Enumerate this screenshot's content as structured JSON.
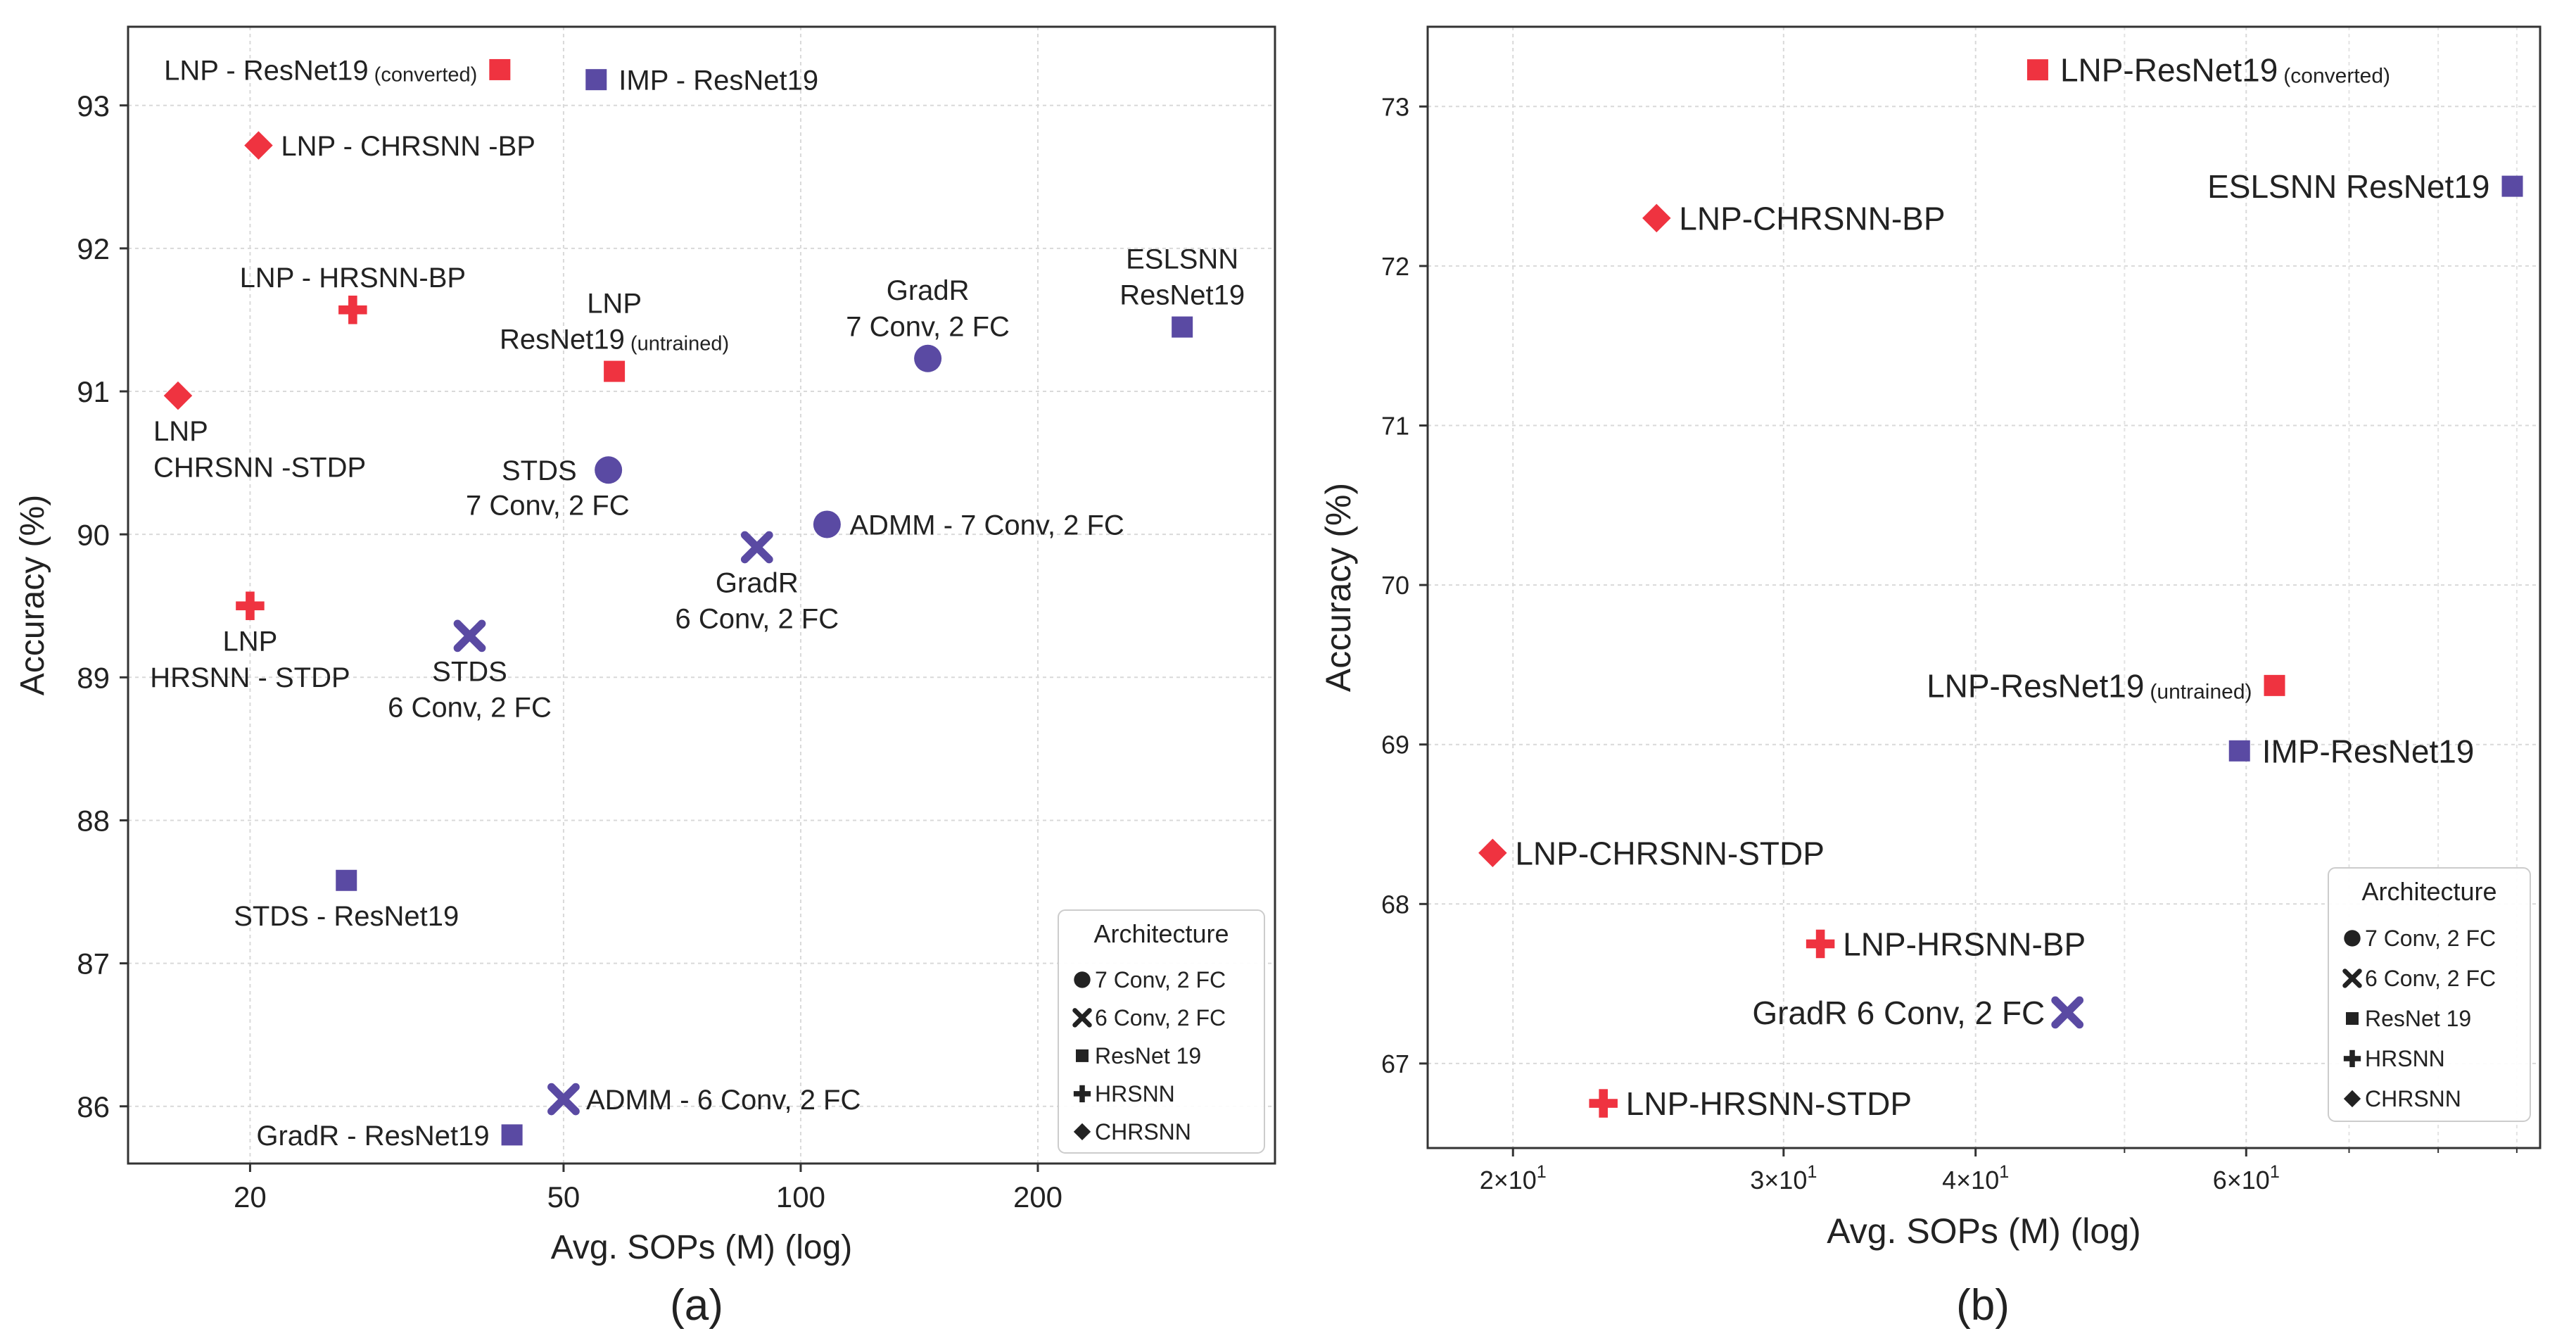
{
  "figure": {
    "panel_labels": [
      "(a)",
      "(b)"
    ]
  },
  "colors": {
    "LNP": "#ef3340",
    "other": "#5a4aa3"
  },
  "chart_data": [
    {
      "type": "scatter",
      "panel": "(a)",
      "xlabel": "Avg. SOPs (M) (log)",
      "ylabel": "Accuracy (%)",
      "xscale": "log",
      "xlim": [
        14,
        400
      ],
      "ylim": [
        85.6,
        93.55
      ],
      "xticks": [
        20,
        50,
        100,
        200
      ],
      "yticks": [
        86,
        87,
        88,
        89,
        90,
        91,
        92,
        93
      ],
      "grid": true,
      "legend": {
        "title": "Architecture",
        "position": "bottom-right",
        "entries": [
          {
            "marker": "circle",
            "label": "7 Conv, 2 FC"
          },
          {
            "marker": "x",
            "label": "6 Conv, 2 FC"
          },
          {
            "marker": "square",
            "label": "ResNet 19"
          },
          {
            "marker": "plus",
            "label": "HRSNN"
          },
          {
            "marker": "diamond",
            "label": "CHRSNN"
          }
        ]
      },
      "points": [
        {
          "x": 41.5,
          "y": 93.25,
          "marker": "square",
          "group": "LNP",
          "label": [
            "LNP - ResNet19"
          ],
          "note": "(converted)",
          "anchor": "end",
          "loc": "left"
        },
        {
          "x": 55,
          "y": 93.18,
          "marker": "square",
          "group": "other",
          "label": [
            "IMP - ResNet19"
          ],
          "anchor": "start",
          "loc": "right"
        },
        {
          "x": 20.5,
          "y": 92.72,
          "marker": "diamond",
          "group": "LNP",
          "label": [
            "LNP  - CHRSNN -BP"
          ],
          "anchor": "start",
          "loc": "right"
        },
        {
          "x": 27,
          "y": 91.57,
          "marker": "plus",
          "group": "LNP",
          "label": [
            "LNP  - HRSNN-BP"
          ],
          "anchor": "middle",
          "loc": "above"
        },
        {
          "x": 16.2,
          "y": 90.97,
          "marker": "diamond",
          "group": "LNP",
          "label": [
            "LNP",
            "CHRSNN -STDP"
          ],
          "anchor": "start",
          "loc": "below-left"
        },
        {
          "x": 58,
          "y": 91.14,
          "marker": "square",
          "group": "LNP",
          "label": [
            "LNP",
            "ResNet19"
          ],
          "note": "(untrained)",
          "anchor": "middle",
          "loc": "above"
        },
        {
          "x": 145,
          "y": 91.23,
          "marker": "circle",
          "group": "other",
          "label": [
            "GradR",
            "7 Conv, 2 FC"
          ],
          "anchor": "middle",
          "loc": "above"
        },
        {
          "x": 305,
          "y": 91.45,
          "marker": "square",
          "group": "other",
          "label": [
            "ESLSNN",
            "ResNet19"
          ],
          "anchor": "middle",
          "loc": "above"
        },
        {
          "x": 57,
          "y": 90.45,
          "marker": "circle",
          "group": "other",
          "label": [
            "STDS",
            "7 Conv, 2 FC"
          ],
          "anchor": "end",
          "loc": "left-split"
        },
        {
          "x": 108,
          "y": 90.07,
          "marker": "circle",
          "group": "other",
          "label": [
            "ADMM - 7 Conv, 2 FC"
          ],
          "anchor": "start",
          "loc": "right"
        },
        {
          "x": 88,
          "y": 89.91,
          "marker": "x",
          "group": "other",
          "label": [
            "GradR",
            "6 Conv, 2 FC"
          ],
          "anchor": "middle",
          "loc": "below"
        },
        {
          "x": 20,
          "y": 89.5,
          "marker": "plus",
          "group": "LNP",
          "label": [
            "LNP",
            "HRSNN - STDP"
          ],
          "anchor": "middle",
          "loc": "below"
        },
        {
          "x": 38,
          "y": 89.29,
          "marker": "x",
          "group": "other",
          "label": [
            "STDS",
            "6 Conv, 2 FC"
          ],
          "anchor": "middle",
          "loc": "below"
        },
        {
          "x": 26.5,
          "y": 87.58,
          "marker": "square",
          "group": "other",
          "label": [
            "STDS - ResNet19"
          ],
          "anchor": "middle",
          "loc": "below"
        },
        {
          "x": 50,
          "y": 86.05,
          "marker": "x",
          "group": "other",
          "label": [
            "ADMM - 6 Conv, 2 FC"
          ],
          "anchor": "start",
          "loc": "right"
        },
        {
          "x": 43,
          "y": 85.8,
          "marker": "square",
          "group": "other",
          "label": [
            "GradR - ResNet19"
          ],
          "anchor": "end",
          "loc": "left"
        }
      ]
    },
    {
      "type": "scatter",
      "panel": "(b)",
      "xlabel": "Avg. SOPs (M) (log)",
      "ylabel": "Accuracy (%)",
      "xscale": "log",
      "xlim": [
        17.6,
        93.2
      ],
      "ylim": [
        66.47,
        73.5
      ],
      "xticks": [
        20,
        30,
        40,
        60
      ],
      "xtick_labels": [
        {
          "base": "2×10",
          "exp": "1"
        },
        {
          "base": "3×10",
          "exp": "1"
        },
        {
          "base": "4×10",
          "exp": "1"
        },
        {
          "base": "6×10",
          "exp": "1"
        }
      ],
      "xminor": [
        50,
        70,
        80,
        90
      ],
      "yticks": [
        67,
        68,
        69,
        70,
        71,
        72,
        73
      ],
      "grid": true,
      "legend": {
        "title": "Architecture",
        "position": "bottom-right",
        "entries": [
          {
            "marker": "circle",
            "label": "7 Conv, 2 FC"
          },
          {
            "marker": "x",
            "label": "6 Conv, 2 FC"
          },
          {
            "marker": "square",
            "label": "ResNet 19"
          },
          {
            "marker": "plus",
            "label": "HRSNN"
          },
          {
            "marker": "diamond",
            "label": "CHRSNN"
          }
        ]
      },
      "points": [
        {
          "x": 43.9,
          "y": 73.23,
          "marker": "square",
          "group": "LNP",
          "label": [
            "LNP-ResNet19"
          ],
          "note": "(converted)",
          "anchor": "start",
          "loc": "right"
        },
        {
          "x": 89.4,
          "y": 72.5,
          "marker": "square",
          "group": "other",
          "label": [
            "ESLSNN ResNet19"
          ],
          "anchor": "end",
          "loc": "left"
        },
        {
          "x": 24.8,
          "y": 72.3,
          "marker": "diamond",
          "group": "LNP",
          "label": [
            "LNP-CHRSNN-BP"
          ],
          "anchor": "start",
          "loc": "right"
        },
        {
          "x": 62.6,
          "y": 69.37,
          "marker": "square",
          "group": "LNP",
          "label": [
            "LNP-ResNet19"
          ],
          "note": "(untrained)",
          "anchor": "end",
          "loc": "left"
        },
        {
          "x": 59.4,
          "y": 68.96,
          "marker": "square",
          "group": "other",
          "label": [
            "IMP-ResNet19"
          ],
          "anchor": "start",
          "loc": "right"
        },
        {
          "x": 19.4,
          "y": 68.32,
          "marker": "diamond",
          "group": "LNP",
          "label": [
            "LNP-CHRSNN-STDP"
          ],
          "anchor": "start",
          "loc": "right"
        },
        {
          "x": 31.7,
          "y": 67.75,
          "marker": "plus",
          "group": "LNP",
          "label": [
            "LNP-HRSNN-BP"
          ],
          "anchor": "start",
          "loc": "right"
        },
        {
          "x": 45.9,
          "y": 67.32,
          "marker": "x",
          "group": "other",
          "label": [
            "GradR 6 Conv, 2 FC"
          ],
          "anchor": "end",
          "loc": "left"
        },
        {
          "x": 22.9,
          "y": 66.75,
          "marker": "plus",
          "group": "LNP",
          "label": [
            "LNP-HRSNN-STDP"
          ],
          "anchor": "start",
          "loc": "right"
        }
      ]
    }
  ]
}
